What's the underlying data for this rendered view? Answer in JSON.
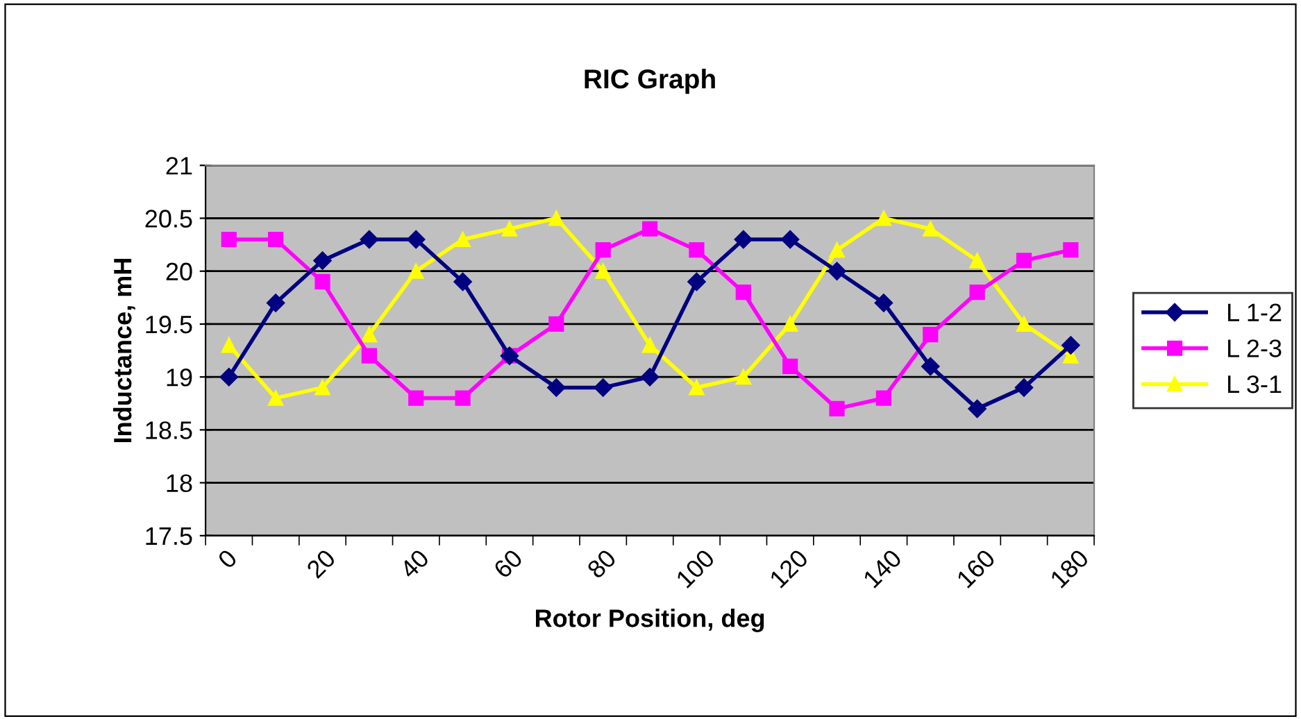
{
  "chart_data": {
    "type": "line",
    "title": "RIC Graph",
    "xlabel": "Rotor Position, deg",
    "ylabel": "Inductance, mH",
    "categories": [
      "0",
      null,
      "20",
      null,
      "40",
      null,
      "60",
      null,
      "80",
      null,
      "100",
      null,
      "120",
      null,
      "140",
      null,
      "160",
      null,
      "180"
    ],
    "series": [
      {
        "name": "L 1-2",
        "color": "#000080",
        "marker": "diamond",
        "values": [
          19.0,
          19.7,
          20.1,
          20.3,
          20.3,
          19.9,
          19.2,
          18.9,
          18.9,
          19.0,
          19.9,
          20.3,
          20.3,
          20.0,
          19.7,
          19.1,
          18.7,
          18.9,
          19.3
        ]
      },
      {
        "name": "L 2-3",
        "color": "#ff00ff",
        "marker": "square",
        "values": [
          20.3,
          20.3,
          19.9,
          19.2,
          18.8,
          18.8,
          19.2,
          19.5,
          20.2,
          20.4,
          20.2,
          19.8,
          19.1,
          18.7,
          18.8,
          19.4,
          19.8,
          20.1,
          20.2
        ]
      },
      {
        "name": "L 3-1",
        "color": "#ffff00",
        "marker": "triangle",
        "values": [
          19.3,
          18.8,
          18.9,
          19.4,
          20.0,
          20.3,
          20.4,
          20.5,
          20.0,
          19.3,
          18.9,
          19.0,
          19.5,
          20.2,
          20.5,
          20.4,
          20.1,
          19.5,
          19.2
        ]
      }
    ],
    "ylim": [
      17.5,
      21
    ],
    "yticks": [
      17.5,
      18,
      18.5,
      19,
      19.5,
      20,
      20.5,
      21
    ],
    "grid": "y",
    "legend": "right"
  }
}
